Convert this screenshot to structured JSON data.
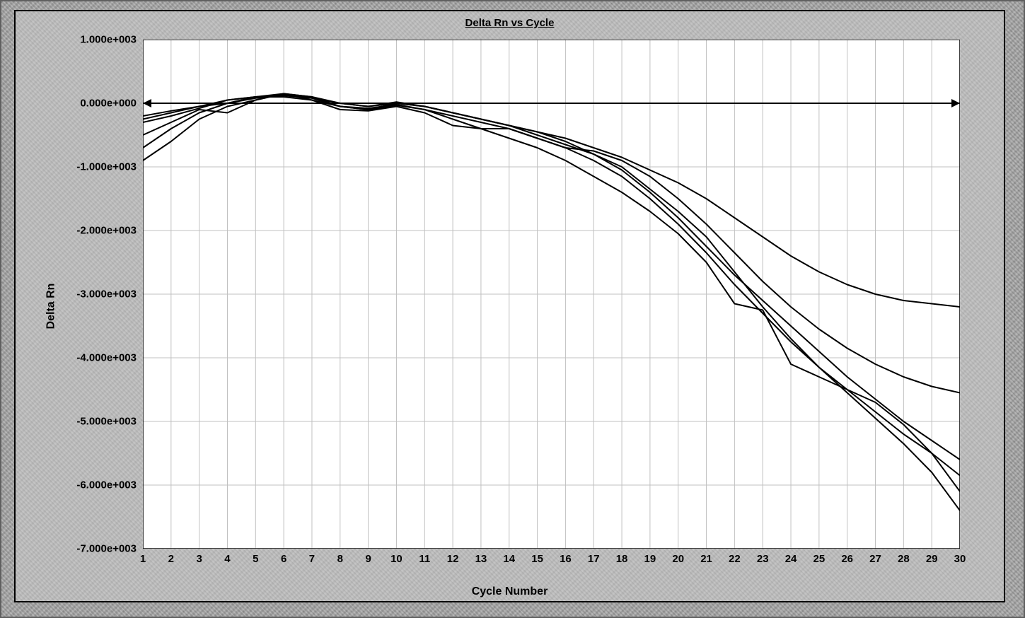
{
  "chart": {
    "type": "line",
    "title": "Delta Rn vs Cycle",
    "title_fontsize": 15,
    "title_fontweight": "bold",
    "title_underline": true,
    "xlabel": "Cycle Number",
    "ylabel": "Delta Rn",
    "label_fontsize": 16,
    "label_fontweight": "bold",
    "background_color": "#c0c0c0",
    "plot_background_color": "#ffffff",
    "grid_color": "#c0c0c0",
    "axis_color": "#000000",
    "line_color": "#000000",
    "line_width": 2,
    "xlim": [
      1,
      30
    ],
    "ylim": [
      -7000,
      1000
    ],
    "x_ticks": [
      1,
      2,
      3,
      4,
      5,
      6,
      7,
      8,
      9,
      10,
      11,
      12,
      13,
      14,
      15,
      16,
      17,
      18,
      19,
      20,
      21,
      22,
      23,
      24,
      25,
      26,
      27,
      28,
      29,
      30
    ],
    "x_tick_labels": [
      "1",
      "2",
      "3",
      "4",
      "5",
      "6",
      "7",
      "8",
      "9",
      "10",
      "11",
      "12",
      "13",
      "14",
      "15",
      "16",
      "17",
      "18",
      "19",
      "20",
      "21",
      "22",
      "23",
      "24",
      "25",
      "26",
      "27",
      "28",
      "29",
      "30"
    ],
    "y_ticks": [
      1000,
      0,
      -1000,
      -2000,
      -3000,
      -4000,
      -5000,
      -6000,
      -7000
    ],
    "y_tick_labels": [
      "1.000e+003",
      "0.000e+000",
      "-1.000e+003",
      "-2.000e+003",
      "-3.000e+003",
      "-4.000e+003",
      "-5.000e+003",
      "-6.000e+003",
      "-7.000e+003"
    ],
    "tick_fontsize": 15,
    "tick_fontweight": "bold",
    "zero_line_arrows": true,
    "series": [
      {
        "name": "curve1",
        "color": "#000000",
        "x": [
          1,
          2,
          3,
          4,
          5,
          6,
          7,
          8,
          9,
          10,
          11,
          12,
          13,
          14,
          15,
          16,
          17,
          18,
          19,
          20,
          21,
          22,
          23,
          24,
          25,
          26,
          27,
          28,
          29,
          30
        ],
        "y": [
          -900,
          -600,
          -250,
          -50,
          50,
          150,
          100,
          0,
          -50,
          20,
          -50,
          -150,
          -250,
          -350,
          -500,
          -650,
          -800,
          -1000,
          -1350,
          -1700,
          -2100,
          -2650,
          -3200,
          -3700,
          -4150,
          -4550,
          -4950,
          -5350,
          -5800,
          -6400
        ]
      },
      {
        "name": "curve2",
        "color": "#000000",
        "x": [
          1,
          2,
          3,
          4,
          5,
          6,
          7,
          8,
          9,
          10,
          11,
          12,
          13,
          14,
          15,
          16,
          17,
          18,
          19,
          20,
          21,
          22,
          23,
          24,
          25,
          26,
          27,
          28,
          29,
          30
        ],
        "y": [
          -700,
          -400,
          -150,
          0,
          100,
          150,
          50,
          -50,
          -80,
          -20,
          -100,
          -200,
          -300,
          -400,
          -550,
          -700,
          -900,
          -1150,
          -1500,
          -1900,
          -2350,
          -2850,
          -3300,
          -3750,
          -4150,
          -4500,
          -4850,
          -5200,
          -5500,
          -5850
        ]
      },
      {
        "name": "curve3",
        "color": "#000000",
        "x": [
          1,
          2,
          3,
          4,
          5,
          6,
          7,
          8,
          9,
          10,
          11,
          12,
          13,
          14,
          15,
          16,
          17,
          18,
          19,
          20,
          21,
          22,
          23,
          24,
          25,
          26,
          27,
          28,
          29,
          30
        ],
        "y": [
          -500,
          -300,
          -100,
          -150,
          50,
          150,
          100,
          -50,
          -100,
          0,
          -50,
          -150,
          -250,
          -350,
          -450,
          -600,
          -800,
          -1050,
          -1400,
          -1800,
          -2250,
          -2700,
          -3100,
          -3500,
          -3900,
          -4300,
          -4650,
          -5000,
          -5300,
          -5600
        ]
      },
      {
        "name": "curve4",
        "color": "#000000",
        "x": [
          1,
          2,
          3,
          4,
          5,
          6,
          7,
          8,
          9,
          10,
          11,
          12,
          13,
          14,
          15,
          16,
          17,
          18,
          19,
          20,
          21,
          22,
          23,
          24,
          25,
          26,
          27,
          28,
          29,
          30
        ],
        "y": [
          -300,
          -200,
          -80,
          50,
          100,
          100,
          50,
          -100,
          -120,
          -50,
          -150,
          -350,
          -400,
          -400,
          -550,
          -700,
          -750,
          -900,
          -1150,
          -1500,
          -1900,
          -2350,
          -2800,
          -3200,
          -3550,
          -3850,
          -4100,
          -4300,
          -4450,
          -4550
        ]
      },
      {
        "name": "curve5",
        "color": "#000000",
        "x": [
          1,
          2,
          3,
          4,
          5,
          6,
          7,
          8,
          9,
          10,
          11,
          12,
          13,
          14,
          15,
          16,
          17,
          18,
          19,
          20,
          21,
          22,
          23,
          24,
          25,
          26,
          27,
          28,
          29,
          30
        ],
        "y": [
          -200,
          -120,
          -50,
          0,
          80,
          120,
          80,
          -50,
          -100,
          -30,
          -100,
          -250,
          -400,
          -550,
          -700,
          -900,
          -1150,
          -1400,
          -1700,
          -2050,
          -2500,
          -3150,
          -3250,
          -4100,
          -4300,
          -4500,
          -4700,
          -5050,
          -5500,
          -6100
        ]
      },
      {
        "name": "curve6",
        "color": "#000000",
        "x": [
          1,
          2,
          3,
          4,
          5,
          6,
          7,
          8,
          9,
          10,
          11,
          12,
          13,
          14,
          15,
          16,
          17,
          18,
          19,
          20,
          21,
          22,
          23,
          24,
          25,
          26,
          27,
          28,
          29,
          30
        ],
        "y": [
          -250,
          -150,
          -50,
          50,
          100,
          130,
          80,
          0,
          -50,
          0,
          -50,
          -150,
          -250,
          -350,
          -450,
          -550,
          -700,
          -850,
          -1050,
          -1250,
          -1500,
          -1800,
          -2100,
          -2400,
          -2650,
          -2850,
          -3000,
          -3100,
          -3150,
          -3200
        ]
      }
    ]
  }
}
